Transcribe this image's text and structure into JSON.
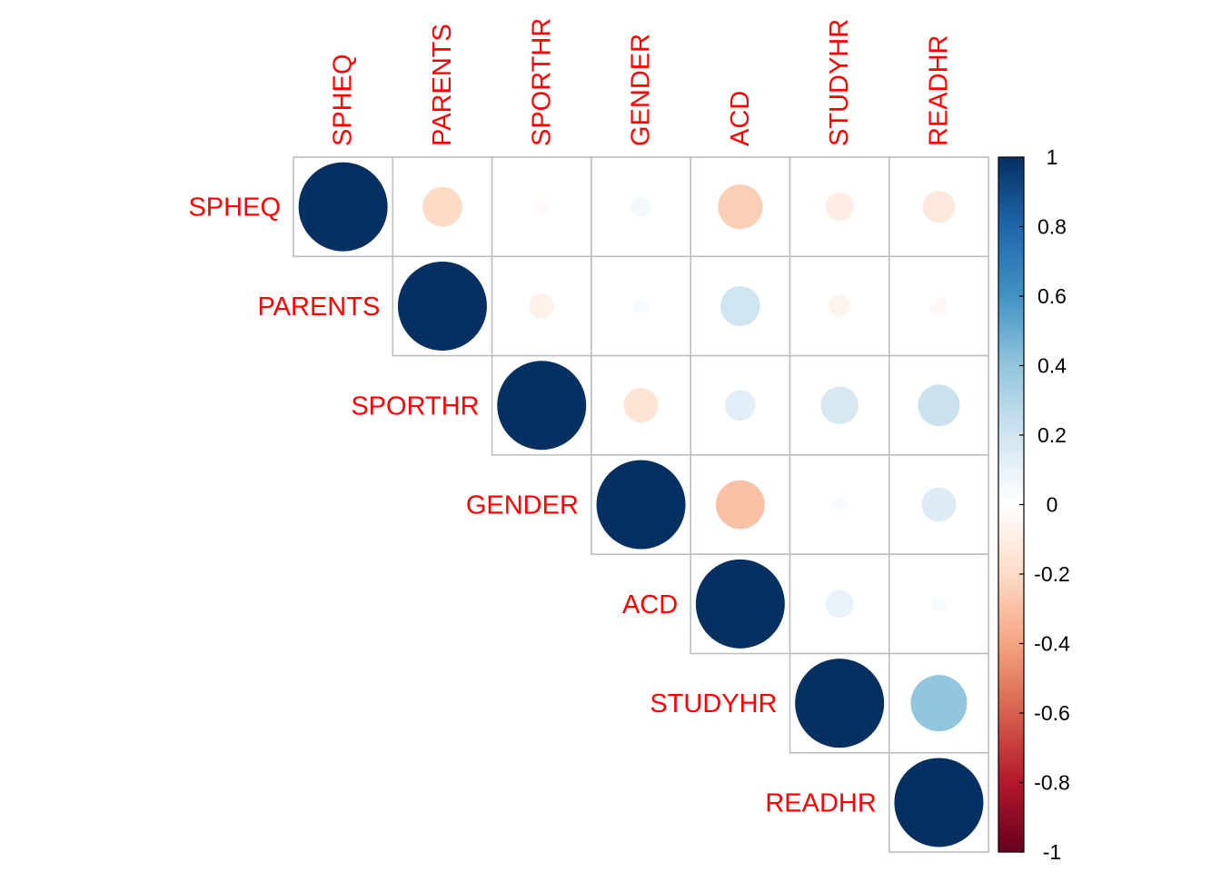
{
  "chart_data": {
    "type": "heatmap",
    "style": "corrplot-upper-circle",
    "variables": [
      "SPHEQ",
      "PARENTS",
      "SPORTHR",
      "GENDER",
      "ACD",
      "STUDYHR",
      "READHR"
    ],
    "matrix": [
      [
        1.0,
        -0.2,
        -0.03,
        0.05,
        -0.25,
        -0.1,
        -0.13
      ],
      [
        -0.2,
        1.0,
        -0.08,
        0.03,
        0.2,
        -0.06,
        -0.04
      ],
      [
        -0.03,
        -0.08,
        1.0,
        -0.15,
        0.12,
        0.18,
        0.22
      ],
      [
        0.05,
        0.03,
        -0.15,
        1.0,
        -0.3,
        0.03,
        0.15
      ],
      [
        -0.25,
        0.2,
        0.12,
        -0.3,
        1.0,
        0.1,
        0.03
      ],
      [
        -0.1,
        -0.06,
        0.18,
        0.03,
        0.1,
        1.0,
        0.4
      ],
      [
        -0.13,
        -0.04,
        0.22,
        0.15,
        0.03,
        0.4,
        1.0
      ]
    ],
    "triangle": "upper",
    "color_scale": {
      "min": -1,
      "max": 1,
      "stops": [
        "#67001F",
        "#B2182B",
        "#D6604D",
        "#F4A582",
        "#FDDBC7",
        "#FFFFFF",
        "#D1E5F0",
        "#92C5DE",
        "#4393C3",
        "#2166AC",
        "#053061"
      ],
      "ticks": [
        "1",
        "0.8",
        "0.6",
        "0.4",
        "0.2",
        "0",
        "-0.2",
        "-0.4",
        "-0.6",
        "-0.8",
        "-1"
      ]
    },
    "label_color": "#FF0000",
    "grid_color": "#BEBEBE"
  }
}
